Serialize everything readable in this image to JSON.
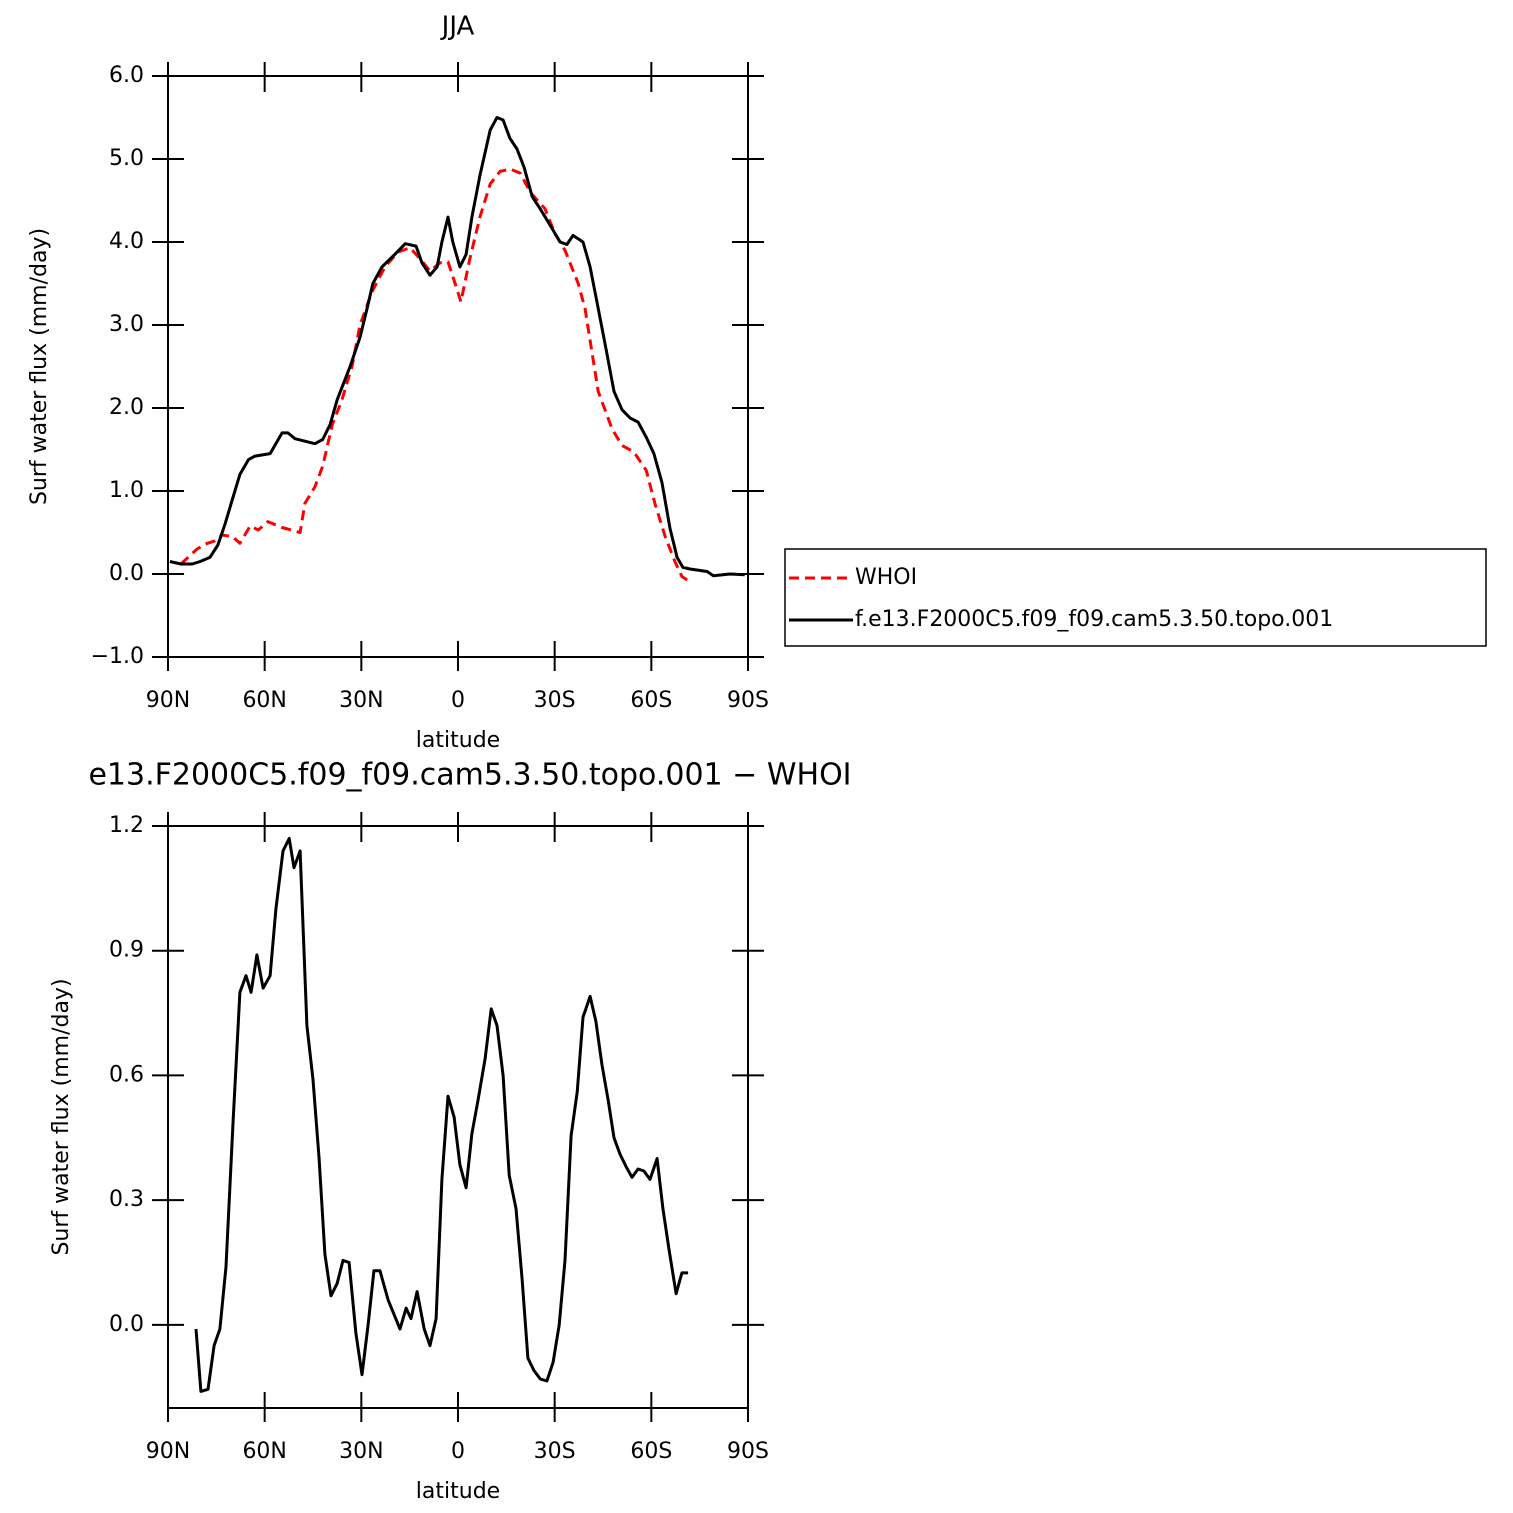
{
  "chart_data": [
    {
      "type": "line",
      "title": "JJA",
      "xlabel": "latitude",
      "ylabel": "Surf water flux (mm/day)",
      "xlim": [
        90,
        -90
      ],
      "xticks": [
        {
          "value": 90,
          "label": "90N"
        },
        {
          "value": 60,
          "label": "60N"
        },
        {
          "value": 30,
          "label": "30N"
        },
        0,
        {
          "value": -30,
          "label": "30S"
        },
        {
          "value": -60,
          "label": "60S"
        },
        {
          "value": -90,
          "label": "90S"
        }
      ],
      "ylim": [
        -1,
        6
      ],
      "yticks": [
        {
          "value": -1,
          "label": "−1.0"
        },
        {
          "value": 0,
          "label": "0.0"
        },
        {
          "value": 1,
          "label": "1.0"
        },
        {
          "value": 2,
          "label": "2.0"
        },
        {
          "value": 3,
          "label": "3.0"
        },
        {
          "value": 4,
          "label": "4.0"
        },
        {
          "value": 5,
          "label": "5.0"
        },
        {
          "value": 6,
          "label": "6.0"
        }
      ],
      "legend": "right",
      "series": [
        {
          "name": "WHOI",
          "color": "#ff0000",
          "style": "dashed",
          "x": [
            86,
            81,
            78.5,
            75.4,
            73.2,
            70,
            67.7,
            64.5,
            62,
            59,
            54.6,
            49,
            47.5,
            44.4,
            42,
            39,
            36,
            32.9,
            30.4,
            26.7,
            22.7,
            18.6,
            14.9,
            11.8,
            8.7,
            5.6,
            3.1,
            0.9,
            -0.9,
            -3.7,
            -6.8,
            -10,
            -13,
            -16.1,
            -19.3,
            -22.4,
            -27,
            -30.1,
            -33.2,
            -37.3,
            -39.4,
            -43.5,
            -47.8,
            -50.9,
            -54.6,
            -58.4,
            -61.1,
            -64.3,
            -67.3,
            -69.5,
            -71.4
          ],
          "values": [
            0.12,
            0.3,
            0.36,
            0.4,
            0.47,
            0.45,
            0.37,
            0.58,
            0.53,
            0.63,
            0.56,
            0.5,
            0.85,
            1.05,
            1.3,
            1.8,
            2.1,
            2.5,
            3.0,
            3.4,
            3.7,
            3.88,
            3.93,
            3.8,
            3.65,
            3.75,
            3.76,
            3.5,
            3.28,
            3.8,
            4.3,
            4.7,
            4.85,
            4.88,
            4.83,
            4.6,
            4.4,
            4.1,
            3.9,
            3.5,
            3.2,
            2.2,
            1.75,
            1.55,
            1.47,
            1.25,
            0.85,
            0.45,
            0.15,
            -0.03,
            -0.08
          ]
        },
        {
          "name": "f.e13.F2000C5.f09_f09.cam5.3.50.topo.001",
          "color": "#000000",
          "style": "solid",
          "x": [
            89.4,
            86,
            82.5,
            80,
            77,
            74.5,
            72.3,
            70,
            67.7,
            65,
            63,
            58.3,
            54.6,
            52.8,
            50.6,
            44.4,
            42,
            39.7,
            37.5,
            33.5,
            30.4,
            28.2,
            26.4,
            23.6,
            19.6,
            16.4,
            13,
            11.2,
            8.7,
            6.5,
            5,
            3.1,
            1.6,
            -0.6,
            -2.5,
            -4.3,
            -6.8,
            -10,
            -12.1,
            -14,
            -16.1,
            -18.3,
            -20.5,
            -23,
            -25.5,
            -28.6,
            -31.7,
            -33.8,
            -35.7,
            -38.8,
            -41,
            -43.5,
            -46,
            -48.4,
            -50.9,
            -53.4,
            -55.9,
            -58.4,
            -60.8,
            -63.3,
            -65.8,
            -68,
            -69.8,
            -72,
            -77.3,
            -79.2,
            -84.4,
            -89
          ],
          "values": [
            0.15,
            0.12,
            0.12,
            0.15,
            0.2,
            0.35,
            0.6,
            0.9,
            1.2,
            1.38,
            1.42,
            1.45,
            1.7,
            1.7,
            1.63,
            1.57,
            1.62,
            1.8,
            2.1,
            2.5,
            2.85,
            3.2,
            3.5,
            3.7,
            3.85,
            3.98,
            3.95,
            3.75,
            3.6,
            3.7,
            4.0,
            4.3,
            4.0,
            3.7,
            3.85,
            4.3,
            4.8,
            5.35,
            5.5,
            5.47,
            5.25,
            5.12,
            4.9,
            4.55,
            4.4,
            4.2,
            4.0,
            3.97,
            4.08,
            4.0,
            3.7,
            3.2,
            2.7,
            2.2,
            1.98,
            1.88,
            1.83,
            1.65,
            1.45,
            1.1,
            0.55,
            0.2,
            0.08,
            0.06,
            0.03,
            -0.02,
            0.0,
            -0.01
          ]
        }
      ]
    },
    {
      "type": "line",
      "title": "e13.F2000C5.f09_f09.cam5.3.50.topo.001 − WHOI",
      "xlabel": "latitude",
      "ylabel": "Surf water flux (mm/day)",
      "xlim": [
        90,
        -90
      ],
      "xticks": [
        {
          "value": 90,
          "label": "90N"
        },
        {
          "value": 60,
          "label": "60N"
        },
        {
          "value": 30,
          "label": "30N"
        },
        0,
        {
          "value": -30,
          "label": "30S"
        },
        {
          "value": -60,
          "label": "60S"
        },
        {
          "value": -90,
          "label": "90S"
        }
      ],
      "ylim": [
        -0.2,
        1.2
      ],
      "yticks": [
        {
          "value": 0,
          "label": "0.0"
        },
        0.3,
        0.6,
        0.9,
        1.2
      ],
      "color": "#000000",
      "x": [
        81.3,
        79.8,
        77.6,
        75.7,
        73.9,
        72,
        69.8,
        67.7,
        65.8,
        64.2,
        62.4,
        60.5,
        58.3,
        56.5,
        54.3,
        52.4,
        50.9,
        49,
        46.9,
        45,
        43.1,
        41.3,
        39.4,
        37.5,
        35.7,
        33.8,
        31.7,
        29.8,
        27.9,
        26.1,
        24.2,
        21.7,
        18,
        16.1,
        14.6,
        12.7,
        10.5,
        8.7,
        6.8,
        5,
        3.1,
        1.2,
        -0.6,
        -2.5,
        -4.3,
        -6.2,
        -8.4,
        -10.3,
        -12.1,
        -14,
        -15.9,
        -18,
        -19.9,
        -21.7,
        -23.6,
        -25.5,
        -27.6,
        -29.5,
        -31.4,
        -33.2,
        -35.1,
        -37,
        -38.8,
        -41,
        -42.8,
        -44.7,
        -46.6,
        -48.4,
        -50.3,
        -52.2,
        -54,
        -55.9,
        -57.7,
        -59.6,
        -61.8,
        -63.6,
        -65.5,
        -67.7,
        -69.5,
        -71.4
      ],
      "values": [
        -0.01,
        -0.16,
        -0.155,
        -0.05,
        -0.01,
        0.14,
        0.49,
        0.8,
        0.84,
        0.8,
        0.89,
        0.81,
        0.84,
        1.0,
        1.14,
        1.17,
        1.1,
        1.14,
        0.72,
        0.59,
        0.4,
        0.17,
        0.07,
        0.1,
        0.155,
        0.15,
        -0.02,
        -0.12,
        0,
        0.13,
        0.13,
        0.06,
        -0.01,
        0.04,
        0.015,
        0.08,
        -0.01,
        -0.05,
        0.015,
        0.35,
        0.55,
        0.5,
        0.385,
        0.33,
        0.46,
        0.54,
        0.64,
        0.76,
        0.72,
        0.6,
        0.36,
        0.28,
        0.11,
        -0.08,
        -0.11,
        -0.13,
        -0.135,
        -0.09,
        0.0,
        0.155,
        0.455,
        0.56,
        0.74,
        0.79,
        0.73,
        0.625,
        0.54,
        0.45,
        0.41,
        0.38,
        0.355,
        0.375,
        0.37,
        0.35,
        0.4,
        0.28,
        0.18,
        0.075,
        0.125,
        0.125
      ]
    }
  ]
}
